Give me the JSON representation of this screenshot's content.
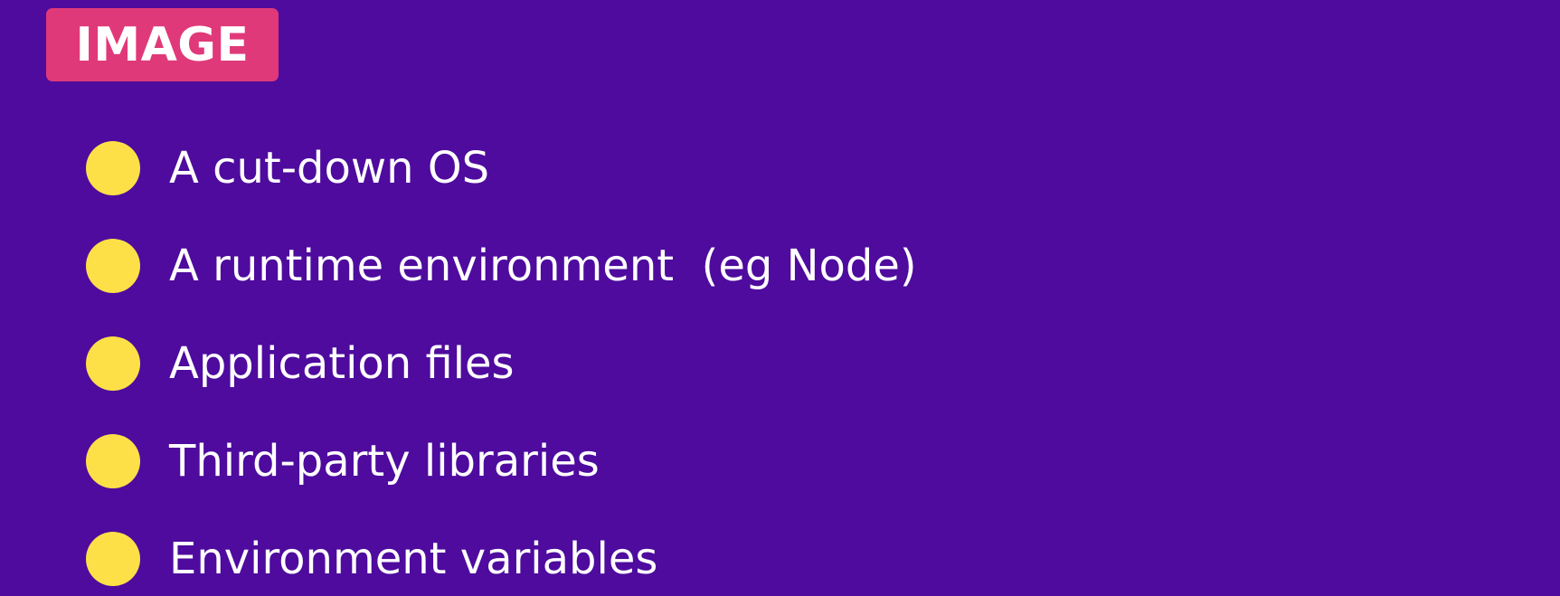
{
  "badge": {
    "label": "IMAGE"
  },
  "bullets": [
    {
      "text": "A cut-down OS"
    },
    {
      "text": "A runtime environment  (eg Node)"
    },
    {
      "text": "Application files"
    },
    {
      "text": "Third-party libraries"
    },
    {
      "text": "Environment variables"
    }
  ],
  "colors": {
    "background": "#4e0b9e",
    "badge": "#e0397a",
    "bullet": "#fde047",
    "text": "#ffffff"
  }
}
